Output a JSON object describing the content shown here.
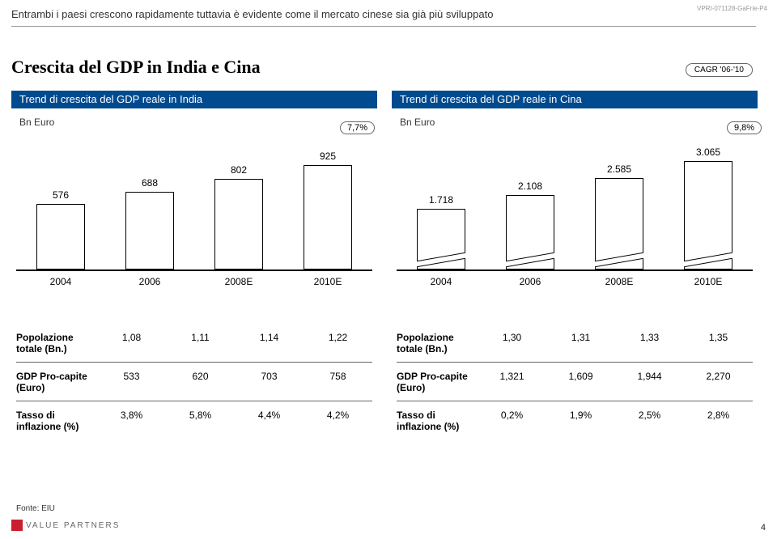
{
  "page_id": "VPRI-071128-GaFrie-P4",
  "page_number": "4",
  "subtitle": "Entrambi i paesi crescono rapidamente tuttavia è evidente come il mercato cinese sia già più sviluppato",
  "title": "Crescita del GDP in India e Cina",
  "cagr_label": "CAGR '06-'10",
  "footer": "Fonte: EIU",
  "vp_text": "VALUE PARTNERS",
  "panel_header_color": "#004a8f",
  "accent_red": "#c91e2f",
  "left": {
    "header": "Trend di crescita del GDP reale in India",
    "unit": "Bn Euro",
    "cagr": "7,7%",
    "chart": {
      "type": "bar",
      "categories": [
        "2004",
        "2006",
        "2008E",
        "2010E"
      ],
      "values": [
        576,
        688,
        802,
        925
      ],
      "labels": [
        "576",
        "688",
        "802",
        "925"
      ],
      "max": 1000,
      "bar_color": "#ffffff",
      "border_color": "#000000"
    },
    "table_rows": [
      {
        "head": "Popolazione totale (Bn.)",
        "cells": [
          "1,08",
          "1,11",
          "1,14",
          "1,22"
        ]
      },
      {
        "head": "GDP Pro-capite (Euro)",
        "cells": [
          "533",
          "620",
          "703",
          "758"
        ]
      },
      {
        "head": "Tasso di inflazione (%)",
        "cells": [
          "3,8%",
          "5,8%",
          "4,4%",
          "4,2%"
        ]
      }
    ]
  },
  "right": {
    "header": "Trend di crescita del GDP reale in Cina",
    "unit": "Bn Euro",
    "cagr": "9,8%",
    "chart": {
      "type": "bar",
      "categories": [
        "2004",
        "2006",
        "2008E",
        "2010E"
      ],
      "values": [
        1718,
        2108,
        2585,
        3065
      ],
      "labels": [
        "1.718",
        "2.108",
        "2.585",
        "3.065"
      ],
      "max": 3200,
      "bar_color": "#ffffff",
      "border_color": "#000000",
      "axis_break": true
    },
    "table_rows": [
      {
        "head": "Popolazione totale (Bn.)",
        "cells": [
          "1,30",
          "1,31",
          "1,33",
          "1,35"
        ]
      },
      {
        "head": "GDP Pro-capite (Euro)",
        "cells": [
          "1,321",
          "1,609",
          "1,944",
          "2,270"
        ]
      },
      {
        "head": "Tasso di inflazione (%)",
        "cells": [
          "0,2%",
          "1,9%",
          "2,5%",
          "2,8%"
        ]
      }
    ]
  }
}
